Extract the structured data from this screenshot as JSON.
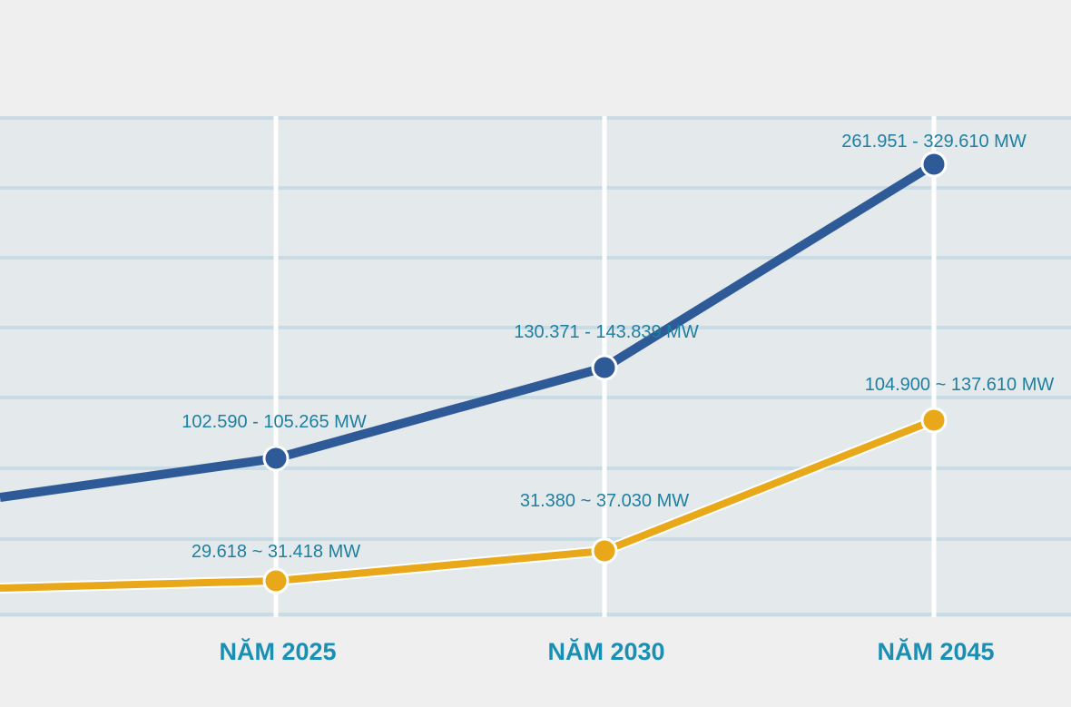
{
  "chart_data": {
    "type": "line",
    "categories": [
      "NĂM 2025",
      "NĂM 2030",
      "NĂM 2045"
    ],
    "series": [
      {
        "color": "#2f5a98",
        "values": [
          103927.5,
          137105,
          295780.5
        ],
        "labels": [
          "102.590 - 105.265 MW",
          "130.371 - 143.839 MW",
          "261.951 - 329.610 MW"
        ]
      },
      {
        "color": "#e8a81a",
        "values": [
          30518,
          34205,
          121255
        ],
        "labels": [
          "29.618 ~ 31.418 MW",
          "31.380 ~ 37.030 MW",
          "104.900 ~ 137.610 MW"
        ]
      }
    ],
    "grid": true,
    "legend": "none"
  }
}
